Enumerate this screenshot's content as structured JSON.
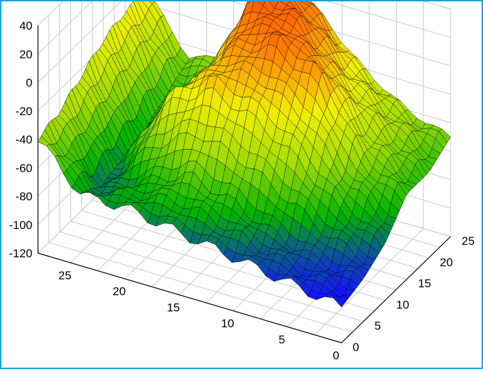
{
  "chart_data": {
    "type": "surface",
    "title": "",
    "xlabel": "",
    "ylabel": "",
    "zlabel": "",
    "x_range": [
      0,
      28
    ],
    "y_range": [
      0,
      25
    ],
    "zlim": [
      -120,
      40
    ],
    "z_ticks": [
      "40",
      "20",
      "0",
      "-20",
      "-40",
      "-60",
      "-80",
      "-100",
      "-120"
    ],
    "x_ticks": [
      "25",
      "20",
      "15",
      "10",
      "5",
      "0"
    ],
    "y_ticks": [
      "0",
      "5",
      "10",
      "15",
      "20",
      "25"
    ],
    "grid": true,
    "colormap": [
      "#0000b4",
      "#1414ff",
      "#00b400",
      "#a0dc00",
      "#f0f000",
      "#ff8c00",
      "#ff4000"
    ],
    "mesh_color": "#000000",
    "border_color": "#1aa3e0",
    "surface_rows_sampled_at_y": [
      0,
      5,
      10,
      15,
      20,
      25
    ],
    "surface_cols_sampled_at_x": [
      0,
      4,
      8,
      12,
      16,
      20,
      24,
      28
    ],
    "z_samples": [
      [
        -95,
        -90,
        -85,
        -80,
        -75,
        -70,
        -70,
        -40
      ],
      [
        -90,
        -85,
        -75,
        -60,
        -50,
        -65,
        -80,
        -35
      ],
      [
        -80,
        -60,
        -30,
        -10,
        0,
        -20,
        -75,
        -25
      ],
      [
        -60,
        -40,
        10,
        25,
        10,
        -30,
        -70,
        -15
      ],
      [
        -60,
        -35,
        -10,
        25,
        35,
        -40,
        -60,
        -10
      ],
      [
        -50,
        -40,
        -20,
        10,
        38,
        -35,
        -50,
        -10
      ]
    ]
  }
}
